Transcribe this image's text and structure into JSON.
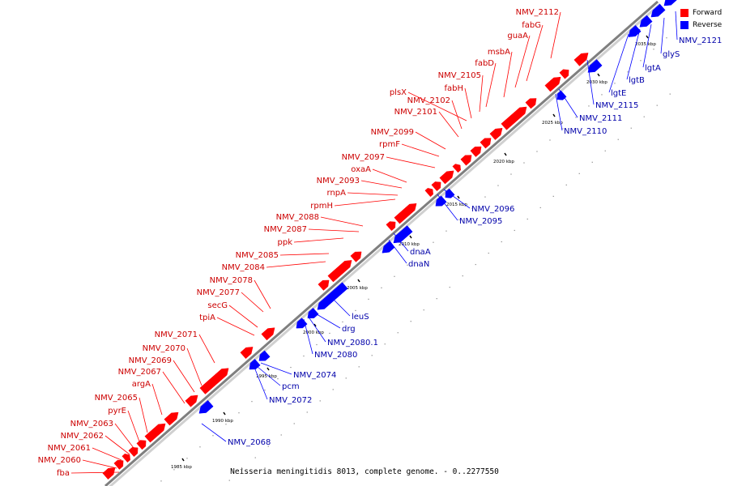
{
  "caption": "Neisseria meningitidis 8013, complete genome. - 0..2277550",
  "legend": {
    "forward_label": "Forward",
    "forward_color": "#ff0000",
    "reverse_label": "Reverse",
    "reverse_color": "#0000ff"
  },
  "colors": {
    "forward_text": "#cc0000",
    "reverse_text": "#0000aa",
    "backbone": "#7f7f7f"
  },
  "ticks": [
    {
      "label": "1985 kbp"
    },
    {
      "label": "1990 kbp"
    },
    {
      "label": "1995 kbp"
    },
    {
      "label": "2000 kbp"
    },
    {
      "label": "2005 kbp"
    },
    {
      "label": "2010 kbp"
    },
    {
      "label": "2015 kbp"
    },
    {
      "label": "2020 kbp"
    },
    {
      "label": "2025 kbp"
    },
    {
      "label": "2030 kbp"
    },
    {
      "label": "2035 kbp"
    }
  ],
  "forward_genes": [
    "fba",
    "NMV_2060",
    "NMV_2061",
    "NMV_2062",
    "NMV_2063",
    "pyrE",
    "NMV_2065",
    "argA",
    "NMV_2067",
    "NMV_2069",
    "NMV_2070",
    "NMV_2071",
    "tpiA",
    "secG",
    "NMV_2077",
    "NMV_2078",
    "NMV_2084",
    "NMV_2085",
    "ppk",
    "NMV_2087",
    "NMV_2088",
    "rpmH",
    "rnpA",
    "NMV_2093",
    "oxaA",
    "NMV_2097",
    "rpmF",
    "NMV_2099",
    "NMV_2101",
    "NMV_2102",
    "plsX",
    "fabH",
    "NMV_2105",
    "fabD",
    "msbA",
    "guaA",
    "fabG",
    "NMV_2112"
  ],
  "reverse_genes": [
    "NMV_2068",
    "NMV_2072",
    "pcm",
    "NMV_2074",
    "NMV_2080",
    "NMV_2080.1",
    "drg",
    "leuS",
    "dnaN",
    "dnaA",
    "NMV_2095",
    "NMV_2096",
    "NMV_2110",
    "NMV_2111",
    "NMV_2115",
    "lgtE",
    "lgtB",
    "lgtA",
    "glyS",
    "NMV_2121"
  ]
}
